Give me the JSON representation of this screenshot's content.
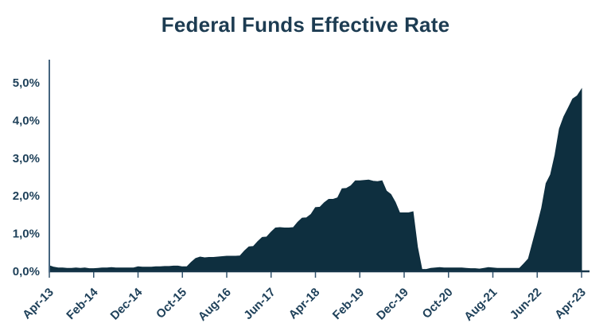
{
  "title": "Federal Funds Effective Rate",
  "colors": {
    "area_fill": "#0e2f3f",
    "x_axis_line": "#16364a",
    "y_axis_line": "#45647f",
    "tick_mark": "#35556f",
    "axis_label": "#1f415a",
    "title_text": "#1d3c52",
    "background": "#ffffff"
  },
  "chart_data": {
    "type": "area",
    "title": "Federal Funds Effective Rate",
    "xlabel": "",
    "ylabel": "",
    "unit": "percent",
    "frequency": "monthly",
    "x_start": "Apr-2013",
    "x_end": "Apr-2023",
    "ylim": [
      0,
      5.5
    ],
    "grid": false,
    "legend": false,
    "decimal_separator": ",",
    "y_tick_labels": [
      "0,0%",
      "1,0%",
      "2,0%",
      "3,0%",
      "4,0%",
      "5,0%"
    ],
    "y_tick_values": [
      0,
      1,
      2,
      3,
      4,
      5
    ],
    "x_tick_labels": [
      "Apr-13",
      "Feb-14",
      "Dec-14",
      "Oct-15",
      "Aug-16",
      "Jun-17",
      "Apr-18",
      "Feb-19",
      "Dec-19",
      "Oct-20",
      "Aug-21",
      "Jun-22",
      "Apr-23"
    ],
    "x_tick_interval_months": 10,
    "values": [
      0.15,
      0.11,
      0.09,
      0.09,
      0.08,
      0.08,
      0.09,
      0.08,
      0.09,
      0.07,
      0.07,
      0.08,
      0.09,
      0.09,
      0.1,
      0.09,
      0.09,
      0.09,
      0.09,
      0.09,
      0.12,
      0.11,
      0.11,
      0.11,
      0.12,
      0.12,
      0.13,
      0.13,
      0.14,
      0.14,
      0.12,
      0.12,
      0.24,
      0.34,
      0.38,
      0.36,
      0.37,
      0.37,
      0.38,
      0.39,
      0.4,
      0.4,
      0.4,
      0.41,
      0.54,
      0.65,
      0.66,
      0.79,
      0.9,
      0.91,
      1.04,
      1.15,
      1.16,
      1.15,
      1.15,
      1.16,
      1.3,
      1.41,
      1.42,
      1.51,
      1.69,
      1.7,
      1.82,
      1.91,
      1.91,
      1.95,
      2.19,
      2.2,
      2.27,
      2.4,
      2.4,
      2.41,
      2.42,
      2.39,
      2.38,
      2.4,
      2.13,
      2.04,
      1.83,
      1.55,
      1.55,
      1.55,
      1.58,
      0.65,
      0.05,
      0.05,
      0.08,
      0.09,
      0.1,
      0.09,
      0.09,
      0.09,
      0.09,
      0.09,
      0.08,
      0.07,
      0.07,
      0.06,
      0.08,
      0.1,
      0.09,
      0.08,
      0.08,
      0.08,
      0.08,
      0.08,
      0.08,
      0.2,
      0.33,
      0.77,
      1.21,
      1.68,
      2.33,
      2.56,
      3.08,
      3.78,
      4.1,
      4.33,
      4.57,
      4.65,
      4.83
    ]
  }
}
